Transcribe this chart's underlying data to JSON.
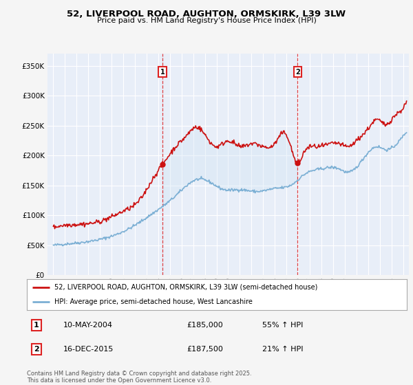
{
  "title": "52, LIVERPOOL ROAD, AUGHTON, ORMSKIRK, L39 3LW",
  "subtitle": "Price paid vs. HM Land Registry's House Price Index (HPI)",
  "legend_line1": "52, LIVERPOOL ROAD, AUGHTON, ORMSKIRK, L39 3LW (semi-detached house)",
  "legend_line2": "HPI: Average price, semi-detached house, West Lancashire",
  "footnote": "Contains HM Land Registry data © Crown copyright and database right 2025.\nThis data is licensed under the Open Government Licence v3.0.",
  "transactions": [
    {
      "label": "1",
      "date": "10-MAY-2004",
      "price": "£185,000",
      "hpi": "55% ↑ HPI",
      "x_year": 2004.36
    },
    {
      "label": "2",
      "date": "16-DEC-2015",
      "price": "£187,500",
      "hpi": "21% ↑ HPI",
      "x_year": 2015.96
    }
  ],
  "hpi_color": "#7bafd4",
  "price_color": "#cc1111",
  "vline_color": "#dd2222",
  "background_color": "#f5f5f5",
  "plot_bg": "#e8eef8",
  "shade_color": "#d0e4f5",
  "ylim_min": 0,
  "ylim_max": 370000,
  "xmin": 1994.5,
  "xmax": 2025.5,
  "yticks": [
    0,
    50000,
    100000,
    150000,
    200000,
    250000,
    300000,
    350000
  ],
  "xticks": [
    1995,
    1996,
    1997,
    1998,
    1999,
    2000,
    2001,
    2002,
    2003,
    2004,
    2005,
    2006,
    2007,
    2008,
    2009,
    2010,
    2011,
    2012,
    2013,
    2014,
    2015,
    2016,
    2017,
    2018,
    2019,
    2020,
    2021,
    2022,
    2023,
    2024,
    2025
  ]
}
